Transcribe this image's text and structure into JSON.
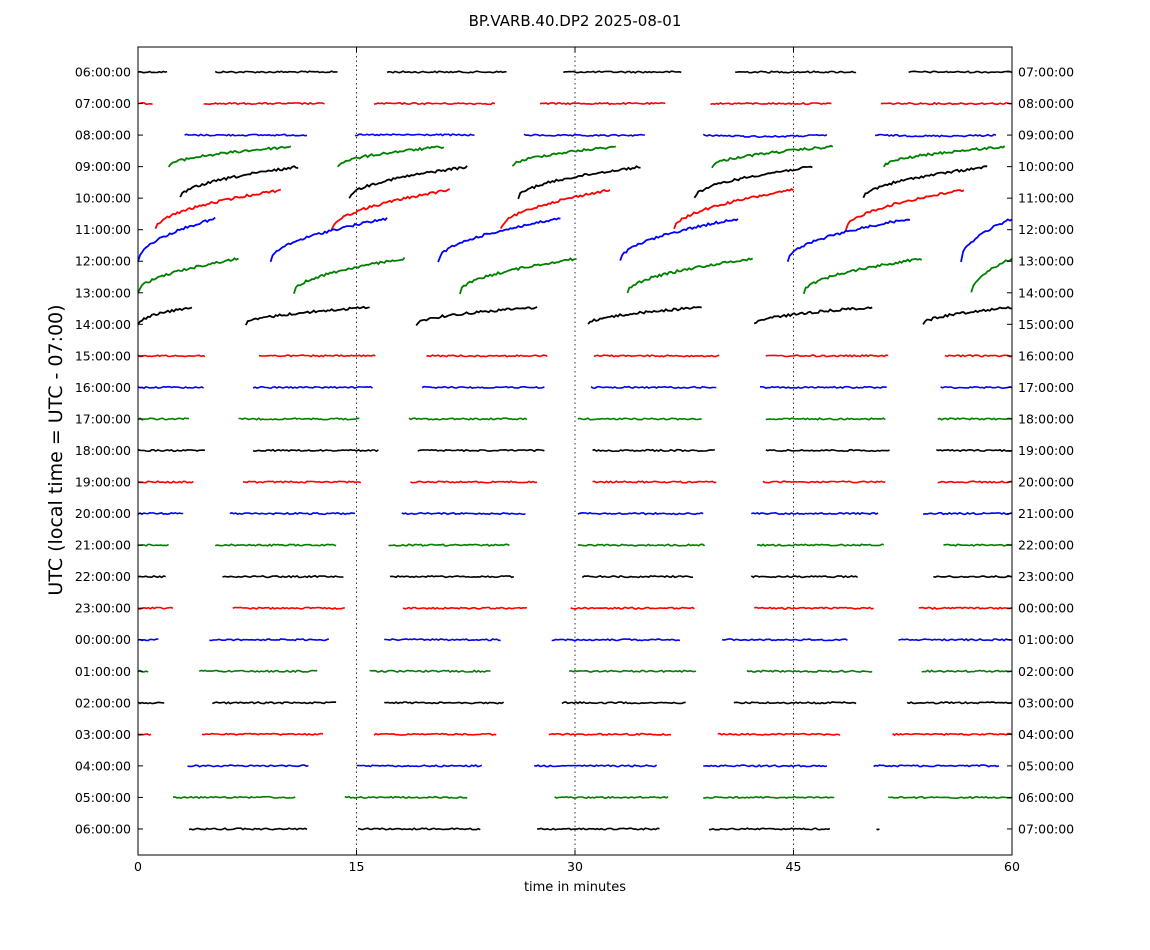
{
  "chart_data": {
    "type": "line",
    "title": "BP.VARB.40.DP2 2025-08-01",
    "xlabel": "time in minutes",
    "ylabel": "UTC (local time = UTC - 07:00)",
    "xlim": [
      0,
      60
    ],
    "x_ticks": [
      "0",
      "15",
      "30",
      "45",
      "60"
    ],
    "x_tick_values": [
      0,
      15,
      30,
      45,
      60
    ],
    "vertical_gridlines_at": [
      15,
      30,
      45
    ],
    "grid": "dotted vertical lines only",
    "left_tick_labels": [
      "06:00:00",
      "07:00:00",
      "08:00:00",
      "09:00:00",
      "10:00:00",
      "11:00:00",
      "12:00:00",
      "13:00:00",
      "14:00:00",
      "15:00:00",
      "16:00:00",
      "17:00:00",
      "18:00:00",
      "19:00:00",
      "20:00:00",
      "21:00:00",
      "22:00:00",
      "23:00:00",
      "00:00:00",
      "01:00:00",
      "02:00:00",
      "03:00:00",
      "04:00:00",
      "05:00:00",
      "06:00:00"
    ],
    "right_tick_labels": [
      "07:00:00",
      "08:00:00",
      "09:00:00",
      "10:00:00",
      "11:00:00",
      "12:00:00",
      "13:00:00",
      "14:00:00",
      "15:00:00",
      "16:00:00",
      "17:00:00",
      "18:00:00",
      "19:00:00",
      "20:00:00",
      "21:00:00",
      "22:00:00",
      "23:00:00",
      "00:00:00",
      "01:00:00",
      "02:00:00",
      "03:00:00",
      "04:00:00",
      "05:00:00",
      "06:00:00",
      "07:00:00"
    ],
    "trace_colors": [
      "#000000",
      "#ff0000",
      "#0000ff",
      "#008000"
    ],
    "color_cycle_rule": "row index modulo 4: black, red, blue, green",
    "segments": [
      {
        "r": 0,
        "s": [
          [
            0,
            2
          ],
          [
            5.3,
            13.7
          ],
          [
            17.1,
            25.3
          ],
          [
            29.2,
            37.3
          ],
          [
            41,
            49.3
          ],
          [
            52.9,
            60
          ]
        ]
      },
      {
        "r": 1,
        "s": [
          [
            0,
            1
          ],
          [
            4.5,
            12.8
          ],
          [
            16.2,
            24.5
          ],
          [
            27.6,
            36.2
          ],
          [
            39.3,
            47.6
          ],
          [
            51,
            60
          ]
        ]
      },
      {
        "r": 2,
        "s": [
          [
            3.2,
            11.6
          ],
          [
            14.9,
            23.1
          ],
          [
            26.5,
            34.8
          ],
          [
            38.8,
            47.3
          ],
          [
            50.6,
            58.9
          ]
        ],
        "drift": [
          0,
          -0.3,
          0.5,
          1.4,
          0.9
        ]
      },
      {
        "r": 3,
        "s": [
          [
            2.1,
            10.5
          ],
          [
            13.7,
            21
          ],
          [
            25.7,
            32.8
          ],
          [
            39.4,
            47.7
          ],
          [
            51.2,
            59.5
          ]
        ],
        "ramp": 3.5
      },
      {
        "r": 4,
        "s": [
          [
            2.9,
            11
          ],
          [
            14.5,
            22.6
          ],
          [
            26.1,
            34.5
          ],
          [
            38.2,
            46.3
          ],
          [
            49.8,
            58.3
          ]
        ],
        "ramp": 5.5
      },
      {
        "r": 5,
        "s": [
          [
            1.2,
            9.8
          ],
          [
            13.3,
            21.4
          ],
          [
            24.9,
            32.4
          ],
          [
            36.8,
            45
          ],
          [
            48.6,
            56.7
          ]
        ],
        "ramp": 7
      },
      {
        "r": 6,
        "s": [
          [
            0,
            5.3
          ],
          [
            9.1,
            17.1
          ],
          [
            20.6,
            29
          ],
          [
            33.1,
            41.2
          ],
          [
            44.6,
            53
          ],
          [
            56.5,
            60
          ]
        ],
        "ramp": 7.5
      },
      {
        "r": 7,
        "s": [
          [
            0,
            6.9
          ],
          [
            10.7,
            18.3
          ],
          [
            22.1,
            30.1
          ],
          [
            33.6,
            42.2
          ],
          [
            45.7,
            53.8
          ],
          [
            57.2,
            60
          ]
        ],
        "ramp": 6
      },
      {
        "r": 8,
        "s": [
          [
            0,
            3.7
          ],
          [
            7.4,
            15.9
          ],
          [
            19.1,
            27.4
          ],
          [
            30.9,
            38.7
          ],
          [
            42.3,
            50.4
          ],
          [
            53.9,
            60
          ]
        ],
        "ramp": 3
      },
      {
        "r": 9,
        "s": [
          [
            0,
            4.6
          ],
          [
            8.3,
            16.3
          ],
          [
            19.8,
            28.1
          ],
          [
            31.3,
            39.9
          ],
          [
            43.1,
            51.5
          ],
          [
            55.4,
            60
          ]
        ]
      },
      {
        "r": 10,
        "s": [
          [
            0,
            4.5
          ],
          [
            7.9,
            16.1
          ],
          [
            19.5,
            27.9
          ],
          [
            31.1,
            39.7
          ],
          [
            42.7,
            51.4
          ],
          [
            55.1,
            60
          ]
        ]
      },
      {
        "r": 11,
        "s": [
          [
            0,
            3.5
          ],
          [
            6.9,
            15.2
          ],
          [
            18.6,
            26.7
          ],
          [
            30.2,
            38.7
          ],
          [
            43.1,
            51.3
          ],
          [
            54.9,
            60
          ]
        ]
      },
      {
        "r": 12,
        "s": [
          [
            0,
            4.6
          ],
          [
            7.9,
            16.5
          ],
          [
            19.2,
            27.9
          ],
          [
            31.2,
            39.6
          ],
          [
            43.1,
            51.6
          ],
          [
            54.8,
            60
          ]
        ]
      },
      {
        "r": 13,
        "s": [
          [
            0,
            3.8
          ],
          [
            7.2,
            15.3
          ],
          [
            18.7,
            27.4
          ],
          [
            31.2,
            39.7
          ],
          [
            42.9,
            51.3
          ],
          [
            54.9,
            60
          ]
        ]
      },
      {
        "r": 14,
        "s": [
          [
            0,
            3.1
          ],
          [
            6.3,
            14.9
          ],
          [
            18.1,
            26.6
          ],
          [
            30.2,
            38.8
          ],
          [
            42.1,
            50.8
          ],
          [
            53.9,
            60
          ]
        ]
      },
      {
        "r": 15,
        "s": [
          [
            0,
            2.1
          ],
          [
            5.3,
            13.6
          ],
          [
            17.2,
            25.5
          ],
          [
            30.2,
            38.9
          ],
          [
            42.5,
            51.2
          ],
          [
            55.3,
            60
          ]
        ]
      },
      {
        "r": 16,
        "s": [
          [
            0,
            1.9
          ],
          [
            5.8,
            14.1
          ],
          [
            17.3,
            25.8
          ],
          [
            30.5,
            38.1
          ],
          [
            42.1,
            49.4
          ],
          [
            54.6,
            60
          ]
        ]
      },
      {
        "r": 17,
        "s": [
          [
            0,
            2.4
          ],
          [
            6.5,
            14.2
          ],
          [
            18.2,
            26.7
          ],
          [
            29.7,
            38.2
          ],
          [
            42.3,
            50.5
          ],
          [
            53.6,
            60
          ]
        ]
      },
      {
        "r": 18,
        "s": [
          [
            0,
            1.4
          ],
          [
            4.9,
            13.1
          ],
          [
            16.9,
            24.9
          ],
          [
            28.4,
            37.2
          ],
          [
            40.1,
            48.7
          ],
          [
            52.2,
            60
          ]
        ]
      },
      {
        "r": 19,
        "s": [
          [
            0,
            0.7
          ],
          [
            4.2,
            12.3
          ],
          [
            15.9,
            24.2
          ],
          [
            29.6,
            38.3
          ],
          [
            41.8,
            50.4
          ],
          [
            53.8,
            60
          ]
        ]
      },
      {
        "r": 20,
        "s": [
          [
            0,
            1.8
          ],
          [
            5.1,
            13.6
          ],
          [
            16.9,
            25.1
          ],
          [
            29.1,
            37.6
          ],
          [
            40.9,
            49.3
          ],
          [
            52.8,
            60
          ]
        ]
      },
      {
        "r": 21,
        "s": [
          [
            0,
            0.9
          ],
          [
            4.4,
            12.7
          ],
          [
            16.2,
            24.6
          ],
          [
            28.2,
            36.6
          ],
          [
            39.8,
            48.2
          ],
          [
            51.8,
            60
          ]
        ]
      },
      {
        "r": 22,
        "s": [
          [
            3.4,
            11.7
          ],
          [
            15,
            23.6
          ],
          [
            27.2,
            35.6
          ],
          [
            38.8,
            47.3
          ],
          [
            50.5,
            59.1
          ]
        ]
      },
      {
        "r": 23,
        "s": [
          [
            2.4,
            10.8
          ],
          [
            14.2,
            22.6
          ],
          [
            28.6,
            36.4
          ],
          [
            38.8,
            47.8
          ],
          [
            51.5,
            60
          ]
        ]
      },
      {
        "r": 24,
        "s": [
          [
            3.5,
            11.6
          ],
          [
            15.1,
            23.5
          ],
          [
            27.4,
            35.8
          ],
          [
            39.2,
            47.5
          ],
          [
            50.7,
            50.9
          ]
        ]
      }
    ]
  }
}
